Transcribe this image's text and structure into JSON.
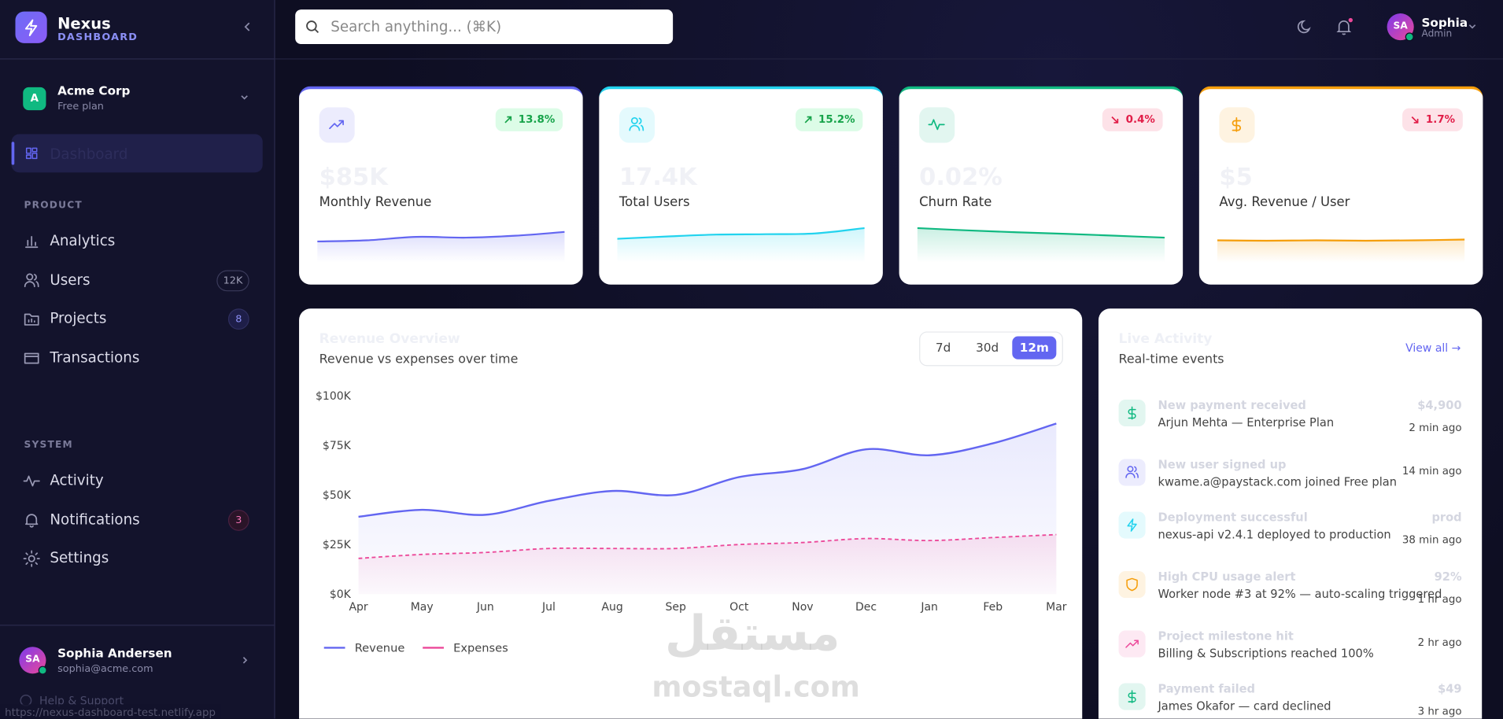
{
  "brand": {
    "name": "Nexus",
    "subtitle": "DASHBOARD"
  },
  "search": {
    "placeholder": "Search anything... (⌘K)"
  },
  "user": {
    "initials": "SA",
    "name": "Sophia",
    "role": "Admin"
  },
  "workspace": {
    "initial": "A",
    "name": "Acme Corp",
    "plan": "Free plan"
  },
  "nav": {
    "active": {
      "label": "Dashboard",
      "icon": "grid"
    },
    "sections": [
      {
        "title": "PRODUCT",
        "items": [
          {
            "label": "Analytics",
            "icon": "bars"
          },
          {
            "label": "Users",
            "icon": "users",
            "badge": "12K",
            "badge_tone": "gray"
          },
          {
            "label": "Projects",
            "icon": "folder",
            "badge": "8",
            "badge_tone": "blue"
          },
          {
            "label": "Transactions",
            "icon": "card"
          }
        ]
      },
      {
        "title": "SYSTEM",
        "items": [
          {
            "label": "Activity",
            "icon": "pulse"
          },
          {
            "label": "Notifications",
            "icon": "bell",
            "badge": "3",
            "badge_tone": "red"
          },
          {
            "label": "Settings",
            "icon": "gear"
          }
        ]
      }
    ]
  },
  "profile": {
    "initials": "SA",
    "name": "Sophia Andersen",
    "email": "sophia@acme.com"
  },
  "help": "Help & Support",
  "status_url": "https://nexus-dashboard-test.netlify.app",
  "sparkline_ylim": [
    0,
    100
  ],
  "stats": [
    {
      "value": "$85K",
      "label": "Monthly Revenue",
      "change": "13.8%",
      "direction": "up",
      "icon": "trend",
      "color": "#6366f1",
      "sparkline": [
        45,
        48,
        57,
        55,
        60,
        70
      ]
    },
    {
      "value": "17.4K",
      "label": "Total Users",
      "change": "15.2%",
      "direction": "up",
      "icon": "users",
      "color": "#22d3ee",
      "sparkline": [
        52,
        58,
        63,
        64,
        66,
        80
      ]
    },
    {
      "value": "0.02%",
      "label": "Churn Rate",
      "change": "0.4%",
      "direction": "down",
      "icon": "pulse",
      "color": "#10b981",
      "sparkline": [
        80,
        74,
        69,
        65,
        60,
        55
      ]
    },
    {
      "value": "$5",
      "label": "Avg. Revenue / User",
      "change": "1.7%",
      "direction": "down",
      "icon": "dollar",
      "color": "#f59e0b",
      "sparkline": [
        48,
        47,
        48,
        47,
        48,
        50
      ]
    }
  ],
  "chart_data": {
    "type": "line",
    "title": "Revenue Overview",
    "subtitle": "Revenue vs expenses over time",
    "ranges": [
      "7d",
      "30d",
      "12m"
    ],
    "active_range_index": 2,
    "categories": [
      "Apr",
      "May",
      "Jun",
      "Jul",
      "Aug",
      "Sep",
      "Oct",
      "Nov",
      "Dec",
      "Jan",
      "Feb",
      "Mar"
    ],
    "series": [
      {
        "name": "Revenue",
        "color": "#6366f1",
        "dashed": false,
        "values": [
          39,
          42.5,
          40,
          47,
          52,
          50,
          59,
          63,
          73,
          70,
          76,
          86
        ]
      },
      {
        "name": "Expenses",
        "color": "#ec4899",
        "dashed": true,
        "values": [
          18,
          20,
          21,
          23,
          23,
          23,
          25,
          26,
          28,
          27,
          28.5,
          30
        ]
      }
    ],
    "ylim": [
      0,
      100
    ],
    "yticks": [
      {
        "value": 0,
        "label": "$0K"
      },
      {
        "value": 25,
        "label": "$25K"
      },
      {
        "value": 50,
        "label": "$50K"
      },
      {
        "value": 75,
        "label": "$75K"
      },
      {
        "value": 100,
        "label": "$100K"
      }
    ],
    "grid": false
  },
  "activity": {
    "title": "Live Activity",
    "subtitle": "Real-time events",
    "view_all": "View all →",
    "items": [
      {
        "title": "New payment received",
        "detail": "Arjun Mehta — Enterprise Plan",
        "amount": "$4,900",
        "time": "2 min ago",
        "icon": "dollar",
        "color": "#10b981"
      },
      {
        "title": "New user signed up",
        "detail": "kwame.a@paystack.com joined Free plan",
        "time": "14 min ago",
        "icon": "users",
        "color": "#6366f1"
      },
      {
        "title": "Deployment successful",
        "detail": "nexus-api v2.4.1 deployed to production",
        "amount": "prod",
        "time": "38 min ago",
        "icon": "bolt",
        "color": "#22d3ee"
      },
      {
        "title": "High CPU usage alert",
        "detail": "Worker node #3 at 92% — auto-scaling triggered",
        "amount": "92%",
        "time": "1 hr ago",
        "icon": "shield",
        "color": "#f59e0b"
      },
      {
        "title": "Project milestone hit",
        "detail": "Billing & Subscriptions reached 100%",
        "time": "2 hr ago",
        "icon": "trend",
        "color": "#ec4899"
      },
      {
        "title": "Payment failed",
        "detail": "James Okafor — card declined",
        "amount": "$49",
        "time": "3 hr ago",
        "icon": "dollar",
        "color": "#10b981"
      }
    ]
  },
  "watermark": {
    "arabic": "مستقل",
    "latin": "mostaql.com"
  }
}
